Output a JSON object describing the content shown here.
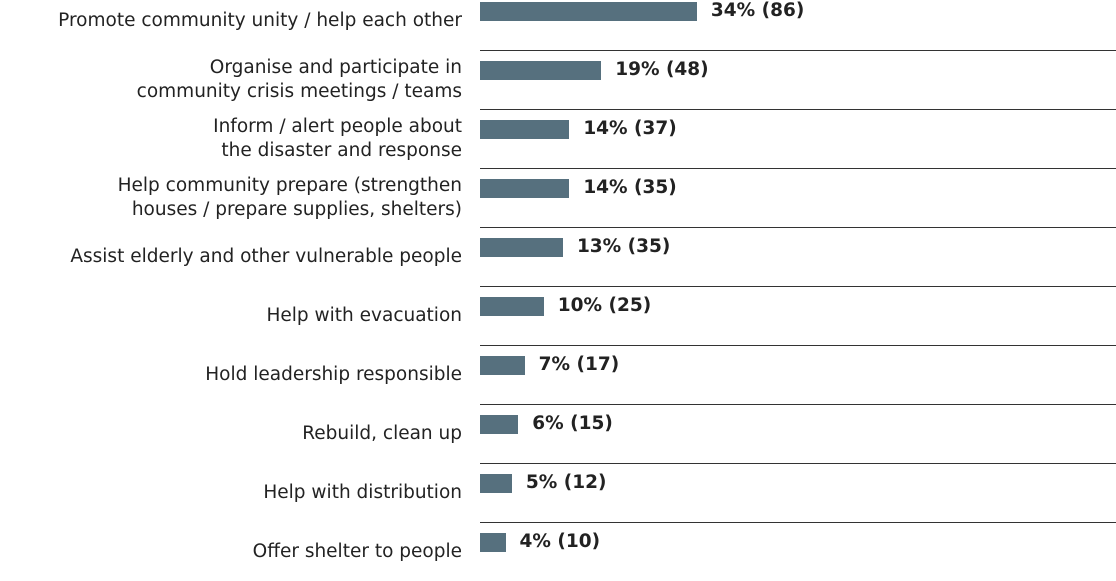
{
  "chart_data": {
    "type": "bar",
    "orientation": "horizontal",
    "color": "#56707e",
    "categories": [
      "Promote community unity / help each other",
      "Organise and participate in\ncommunity crisis meetings / teams",
      "Inform / alert people about\nthe disaster and response",
      "Help community prepare (strengthen\nhouses / prepare supplies, shelters)",
      "Assist elderly and other vulnerable people",
      "Help with evacuation",
      "Hold leadership responsible",
      "Rebuild, clean up",
      "Help with distribution",
      "Offer shelter to people"
    ],
    "values": [
      34,
      19,
      14,
      14,
      13,
      10,
      7,
      6,
      5,
      4
    ],
    "value_labels": [
      "34% (86)",
      "19% (48)",
      "14% (37)",
      "14% (35)",
      "13% (35)",
      "10% (25)",
      "7% (17)",
      "6% (15)",
      "5% (12)",
      "4% (10)"
    ]
  }
}
